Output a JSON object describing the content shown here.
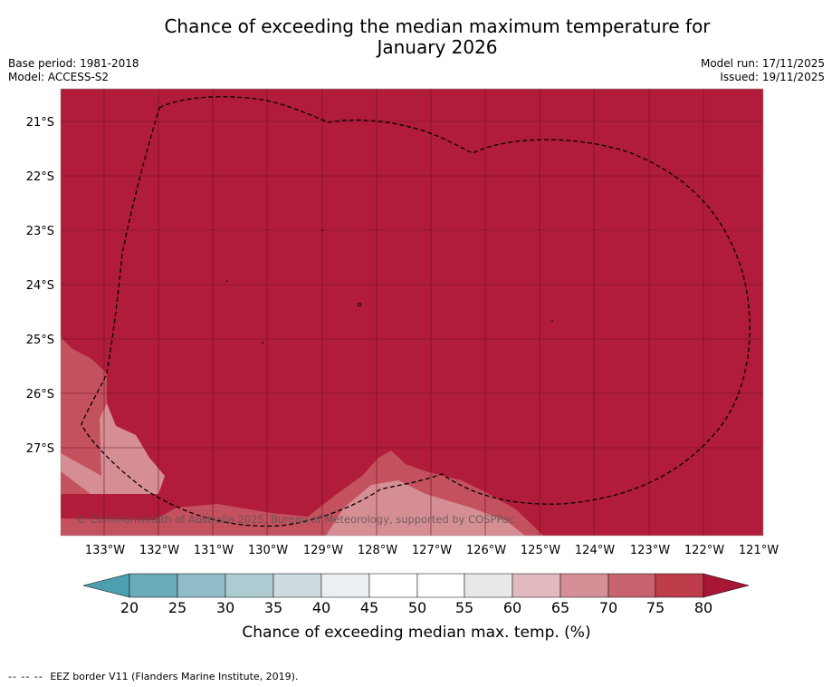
{
  "title": {
    "line1": "Chance of exceeding the median maximum temperature for",
    "line2": "January 2026"
  },
  "meta": {
    "base_period": "Base period: 1981-2018",
    "model": "Model: ACCESS-S2",
    "model_run": "Model run: 17/11/2025",
    "issued": "Issued: 19/11/2025"
  },
  "map": {
    "lat_labels": [
      "21°S",
      "22°S",
      "23°S",
      "24°S",
      "25°S",
      "26°S",
      "27°S"
    ],
    "lon_labels": [
      "133°W",
      "132°W",
      "131°W",
      "130°W",
      "129°W",
      "128°W",
      "127°W",
      "126°W",
      "125°W",
      "124°W",
      "123°W",
      "122°W",
      "121°W"
    ],
    "copyright": "© Commonwealth of Australia 2025, Bureau of Meteorology, supported by COSPPac",
    "colors": {
      "dominant": "#b01c39",
      "mid": "#c4515e",
      "light": "#d68e95"
    }
  },
  "colorbar": {
    "ticks": [
      "20",
      "25",
      "30",
      "35",
      "40",
      "45",
      "50",
      "55",
      "60",
      "65",
      "70",
      "75",
      "80"
    ],
    "colors": [
      "#6aabba",
      "#8fbcc6",
      "#adccd2",
      "#cedbdf",
      "#eaf0f2",
      "#ffffff",
      "#ffffff",
      "#e8e8e8",
      "#e1b9bf",
      "#d58f96",
      "#c9636e",
      "#bd3d4b"
    ],
    "under_color": "#4b9fae",
    "over_color": "#a81535",
    "label": "Chance of exceeding median max. temp. (%)"
  },
  "footnote": {
    "dash": "-- -- --",
    "text": "EEZ border V11 (Flanders Marine Institute, 2019)."
  }
}
